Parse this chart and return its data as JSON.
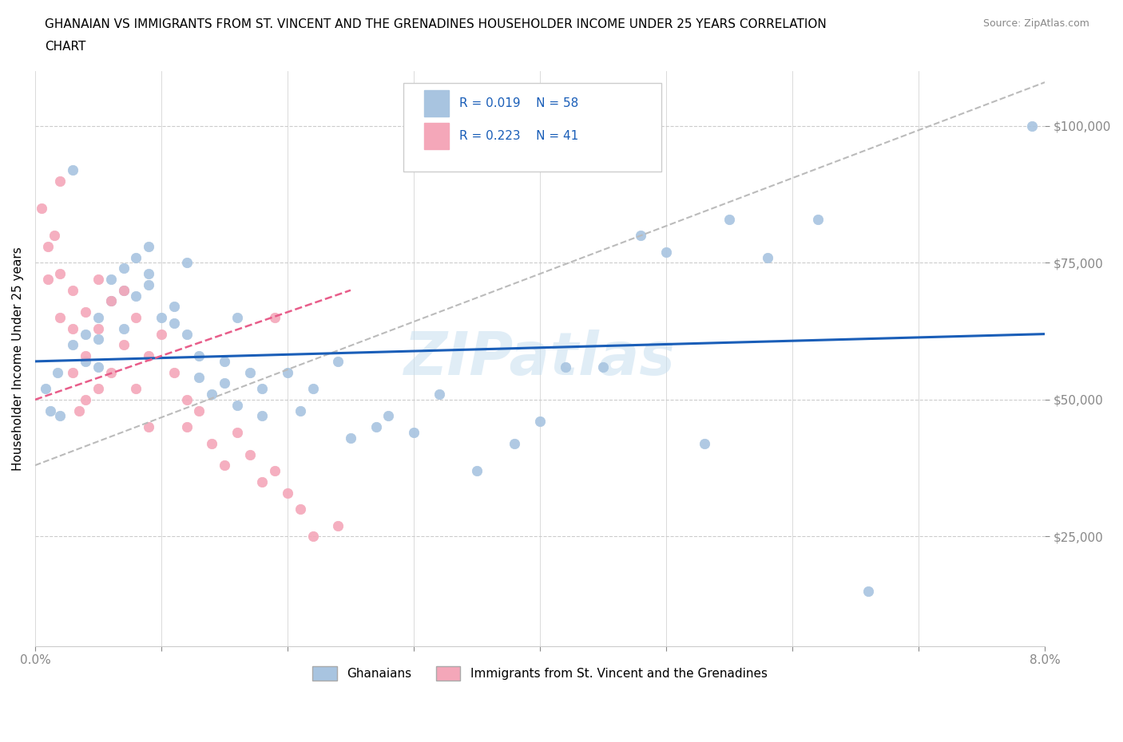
{
  "title_line1": "GHANAIAN VS IMMIGRANTS FROM ST. VINCENT AND THE GRENADINES HOUSEHOLDER INCOME UNDER 25 YEARS CORRELATION",
  "title_line2": "CHART",
  "source_text": "Source: ZipAtlas.com",
  "ylabel": "Householder Income Under 25 years",
  "xlim": [
    0.0,
    0.08
  ],
  "ylim": [
    5000,
    110000
  ],
  "yticks": [
    25000,
    50000,
    75000,
    100000
  ],
  "ytick_labels": [
    "$25,000",
    "$50,000",
    "$75,000",
    "$100,000"
  ],
  "xticks": [
    0.0,
    0.01,
    0.02,
    0.03,
    0.04,
    0.05,
    0.06,
    0.07,
    0.08
  ],
  "xtick_labels": [
    "0.0%",
    "",
    "",
    "",
    "",
    "",
    "",
    "",
    "8.0%"
  ],
  "legend_R1": "R = 0.019",
  "legend_N1": "N = 58",
  "legend_R2": "R = 0.223",
  "legend_N2": "N = 41",
  "blue_color": "#a8c4e0",
  "pink_color": "#f4a7b9",
  "trend_blue_color": "#1a5eb8",
  "trend_pink_color": "#e85d8a",
  "trend_gray_color": "#bbbbbb",
  "watermark": "ZIPatlas",
  "gh_x": [
    0.0008,
    0.0012,
    0.0018,
    0.002,
    0.003,
    0.003,
    0.004,
    0.004,
    0.005,
    0.005,
    0.005,
    0.006,
    0.006,
    0.007,
    0.007,
    0.007,
    0.008,
    0.008,
    0.009,
    0.009,
    0.009,
    0.01,
    0.011,
    0.011,
    0.012,
    0.012,
    0.013,
    0.013,
    0.014,
    0.015,
    0.015,
    0.016,
    0.016,
    0.017,
    0.018,
    0.018,
    0.02,
    0.021,
    0.022,
    0.024,
    0.025,
    0.027,
    0.028,
    0.03,
    0.032,
    0.035,
    0.038,
    0.04,
    0.042,
    0.045,
    0.048,
    0.05,
    0.053,
    0.055,
    0.058,
    0.062,
    0.066,
    0.079
  ],
  "gh_y": [
    52000,
    48000,
    55000,
    47000,
    60000,
    92000,
    62000,
    57000,
    65000,
    61000,
    56000,
    72000,
    68000,
    70000,
    74000,
    63000,
    76000,
    69000,
    71000,
    78000,
    73000,
    65000,
    67000,
    64000,
    62000,
    75000,
    58000,
    54000,
    51000,
    53000,
    57000,
    49000,
    65000,
    55000,
    47000,
    52000,
    55000,
    48000,
    52000,
    57000,
    43000,
    45000,
    47000,
    44000,
    51000,
    37000,
    42000,
    46000,
    56000,
    56000,
    80000,
    77000,
    42000,
    83000,
    76000,
    83000,
    15000,
    100000
  ],
  "svg_x": [
    0.0005,
    0.001,
    0.001,
    0.0015,
    0.002,
    0.002,
    0.002,
    0.003,
    0.003,
    0.003,
    0.0035,
    0.004,
    0.004,
    0.004,
    0.005,
    0.005,
    0.005,
    0.006,
    0.006,
    0.007,
    0.007,
    0.008,
    0.008,
    0.009,
    0.009,
    0.01,
    0.011,
    0.012,
    0.012,
    0.013,
    0.014,
    0.015,
    0.016,
    0.017,
    0.018,
    0.019,
    0.019,
    0.02,
    0.021,
    0.022,
    0.024
  ],
  "svg_y": [
    85000,
    78000,
    72000,
    80000,
    73000,
    90000,
    65000,
    70000,
    63000,
    55000,
    48000,
    66000,
    58000,
    50000,
    72000,
    63000,
    52000,
    68000,
    55000,
    70000,
    60000,
    65000,
    52000,
    58000,
    45000,
    62000,
    55000,
    50000,
    45000,
    48000,
    42000,
    38000,
    44000,
    40000,
    35000,
    37000,
    65000,
    33000,
    30000,
    25000,
    27000
  ]
}
